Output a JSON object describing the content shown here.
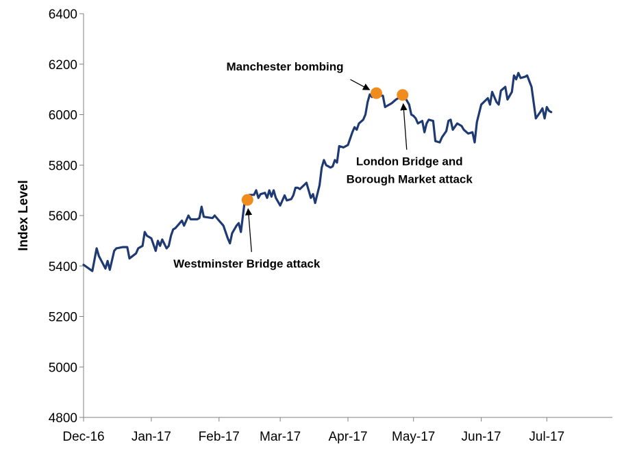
{
  "chart_data": {
    "type": "line",
    "ylabel": "Index Level",
    "ylim": [
      4800,
      6400
    ],
    "yticks": [
      4800,
      5000,
      5200,
      5400,
      5600,
      5800,
      6000,
      6200,
      6400
    ],
    "x_range": [
      "2016-12-01",
      "2017-07-31"
    ],
    "x_tick_labels": [
      {
        "date": "2016-12-01",
        "label": "Dec-16"
      },
      {
        "date": "2017-01-01",
        "label": "Jan-17"
      },
      {
        "date": "2017-02-01",
        "label": "Feb-17"
      },
      {
        "date": "2017-03-01",
        "label": "Mar-17"
      },
      {
        "date": "2017-04-01",
        "label": "Apr-17"
      },
      {
        "date": "2017-05-01",
        "label": "May-17"
      },
      {
        "date": "2017-06-01",
        "label": "Jun-17"
      },
      {
        "date": "2017-07-01",
        "label": "Jul-17"
      }
    ],
    "grid": false,
    "line_color": "#1F3A73",
    "marker_color": "#F08B1E",
    "series": [
      {
        "points": [
          [
            "2016-12-01",
            5405
          ],
          [
            "2016-12-05",
            5380
          ],
          [
            "2016-12-07",
            5470
          ],
          [
            "2016-12-08",
            5440
          ],
          [
            "2016-12-11",
            5390
          ],
          [
            "2016-12-12",
            5420
          ],
          [
            "2016-12-13",
            5385
          ],
          [
            "2016-12-15",
            5460
          ],
          [
            "2016-12-16",
            5470
          ],
          [
            "2016-12-19",
            5475
          ],
          [
            "2016-12-21",
            5475
          ],
          [
            "2016-12-22",
            5430
          ],
          [
            "2016-12-25",
            5450
          ],
          [
            "2016-12-26",
            5470
          ],
          [
            "2016-12-28",
            5480
          ],
          [
            "2016-12-29",
            5535
          ],
          [
            "2016-12-30",
            5520
          ],
          [
            "2017-01-01",
            5510
          ],
          [
            "2017-01-03",
            5460
          ],
          [
            "2017-01-04",
            5500
          ],
          [
            "2017-01-05",
            5480
          ],
          [
            "2017-01-06",
            5505
          ],
          [
            "2017-01-08",
            5470
          ],
          [
            "2017-01-09",
            5480
          ],
          [
            "2017-01-10",
            5520
          ],
          [
            "2017-01-11",
            5545
          ],
          [
            "2017-01-12",
            5550
          ],
          [
            "2017-01-15",
            5580
          ],
          [
            "2017-01-16",
            5560
          ],
          [
            "2017-01-18",
            5600
          ],
          [
            "2017-01-19",
            5585
          ],
          [
            "2017-01-22",
            5585
          ],
          [
            "2017-01-23",
            5590
          ],
          [
            "2017-01-24",
            5635
          ],
          [
            "2017-01-25",
            5595
          ],
          [
            "2017-01-29",
            5590
          ],
          [
            "2017-01-30",
            5600
          ],
          [
            "2017-02-01",
            5580
          ],
          [
            "2017-02-03",
            5560
          ],
          [
            "2017-02-05",
            5510
          ],
          [
            "2017-02-06",
            5490
          ],
          [
            "2017-02-07",
            5530
          ],
          [
            "2017-02-09",
            5560
          ],
          [
            "2017-02-10",
            5570
          ],
          [
            "2017-02-11",
            5535
          ],
          [
            "2017-02-13",
            5675
          ],
          [
            "2017-02-15",
            5682
          ],
          [
            "2017-02-17",
            5682
          ],
          [
            "2017-02-18",
            5700
          ],
          [
            "2017-02-19",
            5670
          ],
          [
            "2017-02-20",
            5685
          ],
          [
            "2017-02-22",
            5690
          ],
          [
            "2017-02-23",
            5670
          ],
          [
            "2017-02-24",
            5700
          ],
          [
            "2017-02-25",
            5675
          ],
          [
            "2017-02-26",
            5700
          ],
          [
            "2017-02-27",
            5670
          ],
          [
            "2017-03-01",
            5640
          ],
          [
            "2017-03-02",
            5660
          ],
          [
            "2017-03-03",
            5680
          ],
          [
            "2017-03-04",
            5660
          ],
          [
            "2017-03-06",
            5665
          ],
          [
            "2017-03-07",
            5680
          ],
          [
            "2017-03-08",
            5710
          ],
          [
            "2017-03-09",
            5710
          ],
          [
            "2017-03-10",
            5705
          ],
          [
            "2017-03-13",
            5730
          ],
          [
            "2017-03-15",
            5670
          ],
          [
            "2017-03-16",
            5685
          ],
          [
            "2017-03-17",
            5650
          ],
          [
            "2017-03-19",
            5720
          ],
          [
            "2017-03-20",
            5790
          ],
          [
            "2017-03-21",
            5820
          ],
          [
            "2017-03-22",
            5800
          ],
          [
            "2017-03-24",
            5790
          ],
          [
            "2017-03-25",
            5795
          ],
          [
            "2017-03-26",
            5820
          ],
          [
            "2017-03-27",
            5810
          ],
          [
            "2017-03-28",
            5875
          ],
          [
            "2017-03-30",
            5870
          ],
          [
            "2017-04-01",
            5880
          ],
          [
            "2017-04-03",
            5930
          ],
          [
            "2017-04-04",
            5950
          ],
          [
            "2017-04-05",
            5940
          ],
          [
            "2017-04-06",
            5965
          ],
          [
            "2017-04-08",
            5980
          ],
          [
            "2017-04-09",
            6000
          ],
          [
            "2017-04-10",
            6050
          ],
          [
            "2017-04-11",
            6080
          ],
          [
            "2017-04-12",
            6070
          ],
          [
            "2017-04-13",
            6090
          ],
          [
            "2017-04-15",
            6075
          ],
          [
            "2017-04-17",
            6075
          ],
          [
            "2017-04-18",
            6030
          ],
          [
            "2017-04-21",
            6045
          ],
          [
            "2017-04-23",
            6060
          ],
          [
            "2017-04-25",
            6070
          ],
          [
            "2017-04-26",
            6080
          ],
          [
            "2017-04-27",
            6070
          ],
          [
            "2017-04-29",
            6040
          ],
          [
            "2017-04-30",
            6000
          ],
          [
            "2017-05-01",
            5995
          ],
          [
            "2017-05-02",
            5985
          ],
          [
            "2017-05-03",
            5965
          ],
          [
            "2017-05-05",
            5975
          ],
          [
            "2017-05-06",
            5930
          ],
          [
            "2017-05-07",
            5965
          ],
          [
            "2017-05-08",
            5980
          ],
          [
            "2017-05-10",
            5975
          ],
          [
            "2017-05-11",
            5895
          ],
          [
            "2017-05-13",
            5890
          ],
          [
            "2017-05-14",
            5910
          ],
          [
            "2017-05-16",
            5935
          ],
          [
            "2017-05-17",
            5975
          ],
          [
            "2017-05-18",
            5980
          ],
          [
            "2017-05-19",
            5940
          ],
          [
            "2017-05-21",
            5965
          ],
          [
            "2017-05-23",
            5955
          ],
          [
            "2017-05-24",
            5940
          ],
          [
            "2017-05-26",
            5925
          ],
          [
            "2017-05-28",
            5930
          ],
          [
            "2017-05-29",
            5890
          ],
          [
            "2017-05-30",
            5970
          ],
          [
            "2017-06-01",
            6040
          ],
          [
            "2017-06-04",
            6065
          ],
          [
            "2017-06-05",
            6040
          ],
          [
            "2017-06-06",
            6090
          ],
          [
            "2017-06-07",
            6070
          ],
          [
            "2017-06-08",
            6050
          ],
          [
            "2017-06-09",
            6040
          ],
          [
            "2017-06-10",
            6095
          ],
          [
            "2017-06-12",
            6110
          ],
          [
            "2017-06-13",
            6060
          ],
          [
            "2017-06-15",
            6090
          ],
          [
            "2017-06-16",
            6155
          ],
          [
            "2017-06-17",
            6140
          ],
          [
            "2017-06-18",
            6165
          ],
          [
            "2017-06-19",
            6145
          ],
          [
            "2017-06-21",
            6150
          ],
          [
            "2017-06-22",
            6155
          ],
          [
            "2017-06-24",
            6110
          ],
          [
            "2017-06-26",
            5985
          ],
          [
            "2017-06-28",
            6010
          ],
          [
            "2017-06-29",
            6025
          ],
          [
            "2017-06-30",
            5985
          ],
          [
            "2017-07-01",
            6030
          ],
          [
            "2017-07-02",
            6015
          ],
          [
            "2017-07-03",
            6010
          ]
        ]
      }
    ],
    "events": [
      {
        "date": "2017-02-14",
        "value": 5662,
        "label": "Westminster Bridge attack",
        "text_position": "below"
      },
      {
        "date": "2017-04-14",
        "value": 6085,
        "label": "Manchester bombing",
        "text_position": "upper-left"
      },
      {
        "date": "2017-04-26",
        "value": 6078,
        "label_lines": [
          "London Bridge and",
          "Borough Market attack"
        ],
        "text_position": "below"
      }
    ]
  }
}
